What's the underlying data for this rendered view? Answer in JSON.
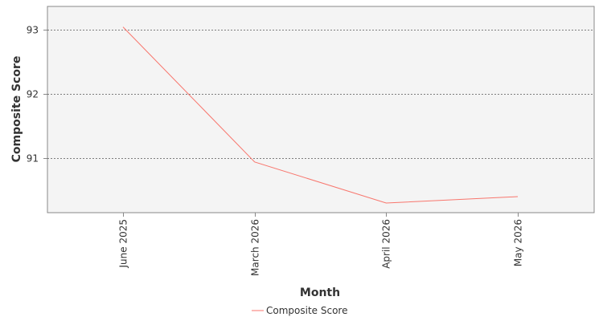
{
  "chart_data": {
    "type": "line",
    "title": "",
    "xlabel": "Month",
    "ylabel": "Composite Score",
    "categories": [
      "June 2025",
      "March 2026",
      "April 2026",
      "May 2026"
    ],
    "series": [
      {
        "name": "Composite Score",
        "values": [
          93.04,
          90.94,
          90.3,
          90.4
        ],
        "color": "#f8766d"
      }
    ],
    "ylim": [
      90.15,
      93.36
    ],
    "yticks": [
      91,
      92,
      93
    ],
    "grid": "horizontal dotted",
    "legend_position": "bottom-center",
    "plot_background": "#f4f4f4"
  }
}
